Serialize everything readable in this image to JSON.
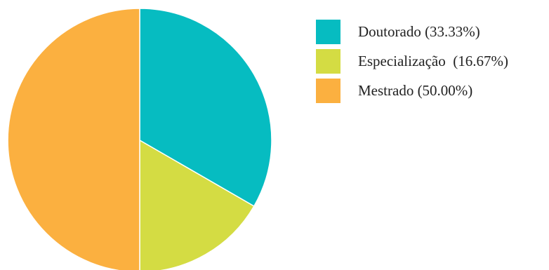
{
  "chart_data": {
    "type": "pie",
    "slices": [
      {
        "label": "Doutorado (33.33%)",
        "value": 33.33,
        "color": "#06bcc1"
      },
      {
        "label": "Especialização  (16.67%)",
        "value": 16.67,
        "color": "#d4dc43"
      },
      {
        "label": "Mestrado (50.00%)",
        "value": 50.0,
        "color": "#fbb040"
      }
    ],
    "start": "12 o'clock",
    "direction": "clockwise",
    "legend_position": "top-right",
    "slice_border_color": "#ffffff"
  }
}
